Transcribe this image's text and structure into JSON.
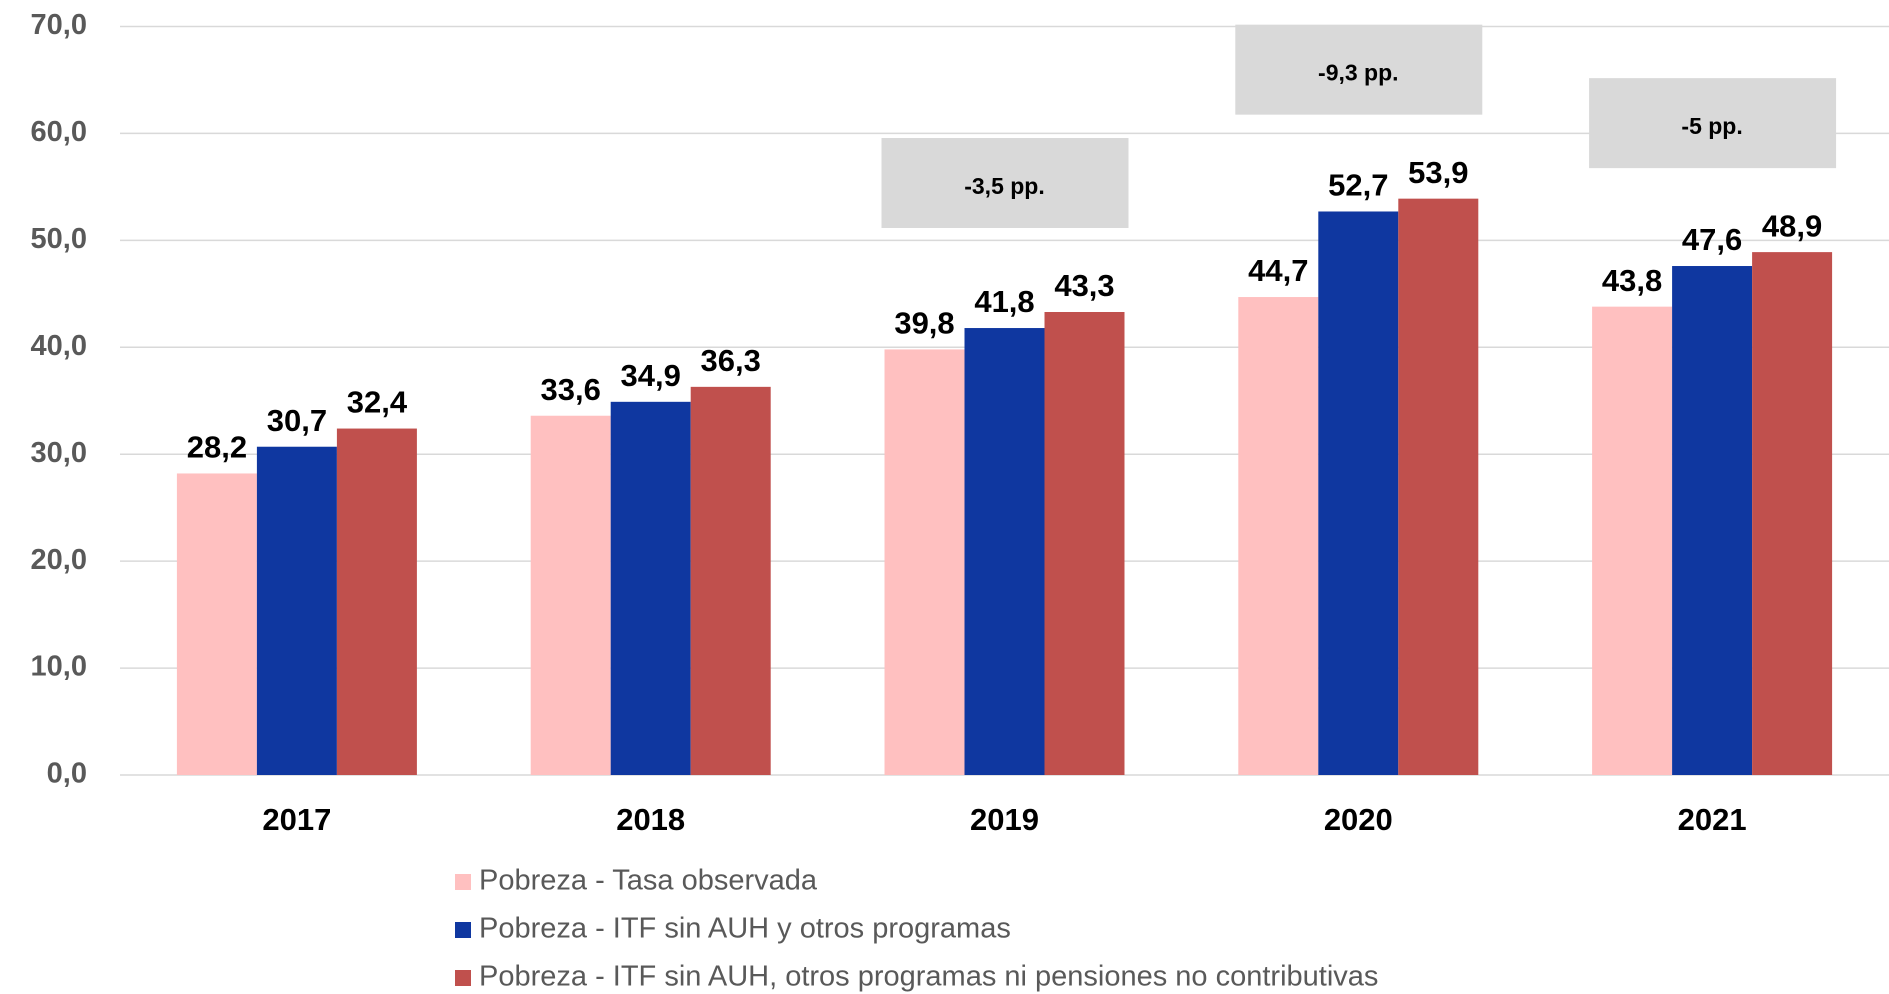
{
  "chart_data": {
    "type": "bar",
    "categories": [
      "2017",
      "2018",
      "2019",
      "2020",
      "2021"
    ],
    "series": [
      {
        "name": "Pobreza - Tasa observada",
        "color": "#ffc0c0",
        "values": [
          28.2,
          33.6,
          39.8,
          44.7,
          43.8
        ],
        "value_labels": [
          "28,2",
          "33,6",
          "39,8",
          "44,7",
          "43,8"
        ]
      },
      {
        "name": "Pobreza - ITF sin AUH y otros programas",
        "color": "#0f37a0",
        "values": [
          30.7,
          34.9,
          41.8,
          52.7,
          47.6
        ],
        "value_labels": [
          "30,7",
          "34,9",
          "41,8",
          "52,7",
          "47,6"
        ]
      },
      {
        "name": "Pobreza - ITF sin AUH, otros programas ni pensiones no contributivas",
        "color": "#c0504d",
        "values": [
          32.4,
          36.3,
          43.3,
          53.9,
          48.9
        ],
        "value_labels": [
          "32,4",
          "36,3",
          "43,3",
          "53,9",
          "48,9"
        ]
      }
    ],
    "ylim": [
      0,
      70
    ],
    "yticks": [
      {
        "value": 0,
        "label": "0,0"
      },
      {
        "value": 10,
        "label": "10,0"
      },
      {
        "value": 20,
        "label": "20,0"
      },
      {
        "value": 30,
        "label": "30,0"
      },
      {
        "value": 40,
        "label": "40,0"
      },
      {
        "value": 50,
        "label": "50,0"
      },
      {
        "value": 60,
        "label": "60,0"
      },
      {
        "value": 70,
        "label": "70,0"
      }
    ],
    "grid": true,
    "legend": "bottom",
    "annotations": [
      {
        "category": "2019",
        "text": "-3,5 pp."
      },
      {
        "category": "2020",
        "text": "-9,3 pp."
      },
      {
        "category": "2021",
        "text": "-5 pp."
      }
    ]
  }
}
